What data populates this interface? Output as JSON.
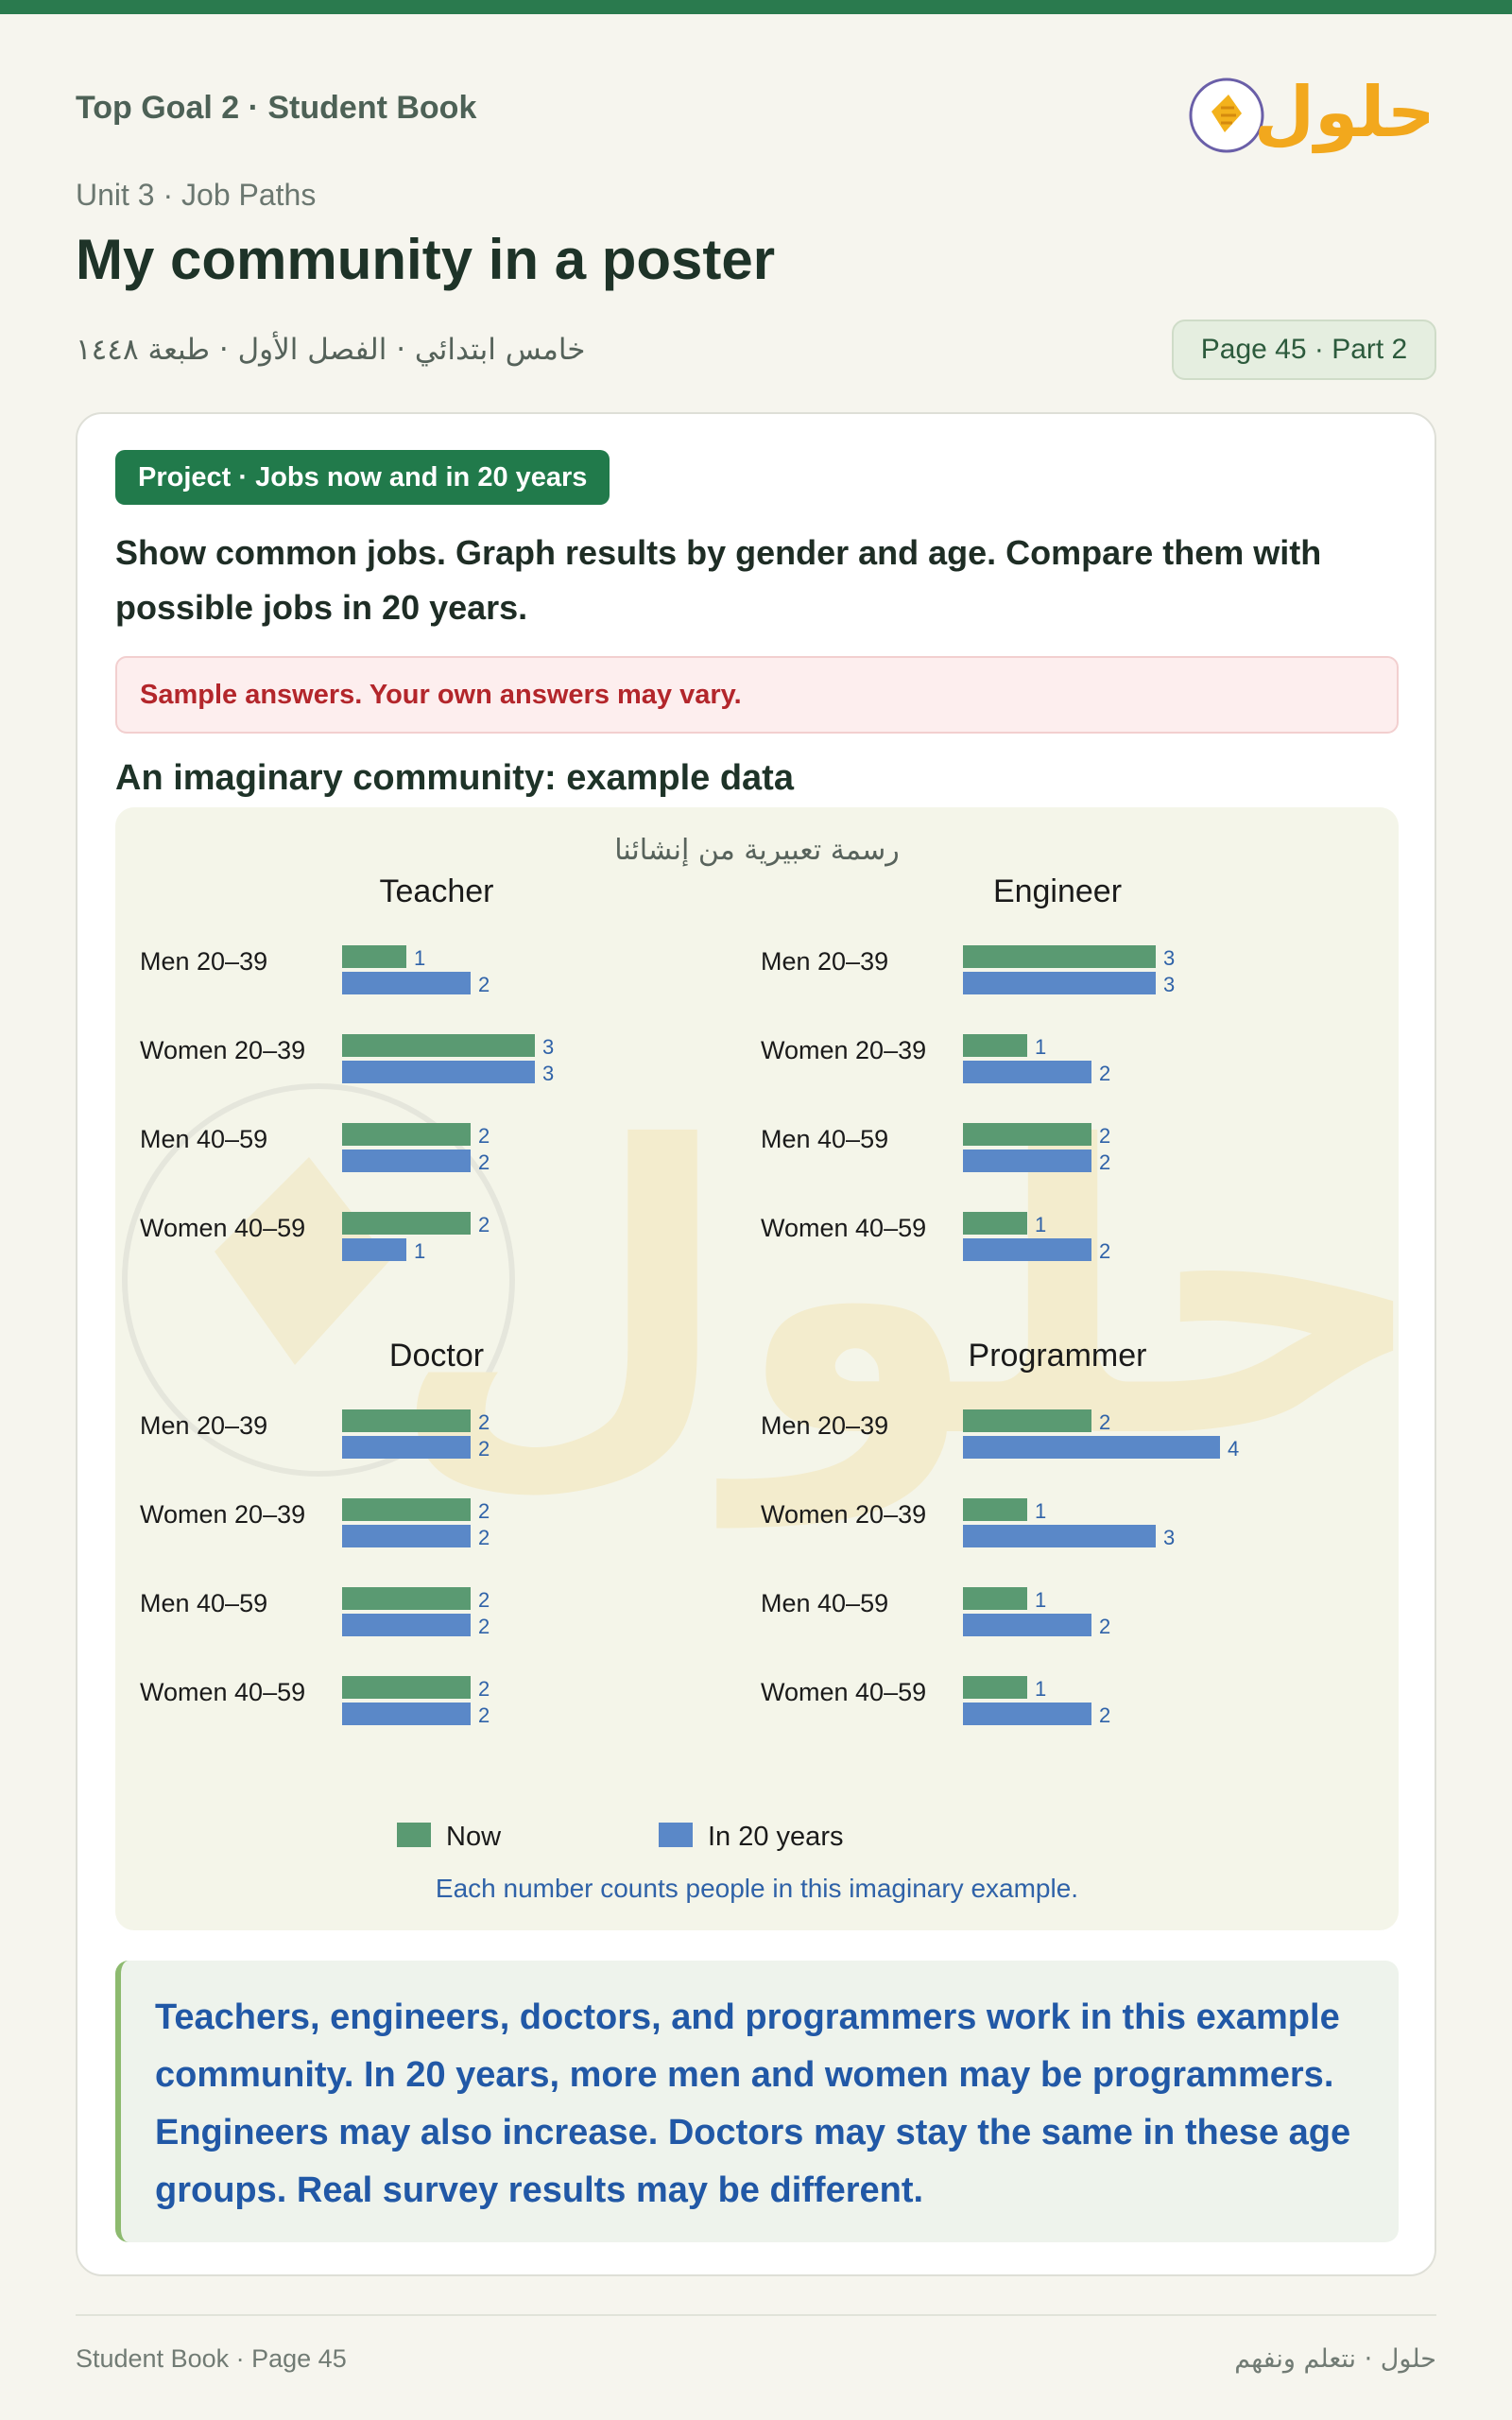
{
  "header": {
    "book_title": "Top Goal 2 · Student Book",
    "unit": "Unit 3 · Job Paths",
    "title": "My community in a poster",
    "grade_line": "خامس ابتدائي · الفصل الأول · طبعة ١٤٤٨",
    "page_pill": "Page 45 · Part 2",
    "logo_text": "حلول"
  },
  "card": {
    "badge": "Project · Jobs now and in 20 years",
    "instructions": "Show common jobs. Graph results by gender and age. Compare them with possible jobs in 20 years.",
    "notice": "Sample answers. Your own answers may vary.",
    "section_heading": "An imaginary community: example data",
    "chart_caption": "رسمة تعبيرية من إنشائنا",
    "footnote": "Each number counts people in this imaginary example.",
    "conclusion": "Teachers, engineers, doctors, and programmers work in this example community. In 20 years, more men and women may be programmers. Engineers may also increase. Doctors may stay the same in these age groups. Real survey results may be different."
  },
  "chart_data": [
    {
      "type": "bar",
      "orientation": "horizontal",
      "title": "Teacher",
      "categories": [
        "Men 20–39",
        "Women 20–39",
        "Men 40–59",
        "Women 40–59"
      ],
      "series": [
        {
          "name": "Now",
          "values": [
            1,
            3,
            2,
            2
          ]
        },
        {
          "name": "In 20 years",
          "values": [
            2,
            3,
            2,
            1
          ]
        }
      ]
    },
    {
      "type": "bar",
      "orientation": "horizontal",
      "title": "Engineer",
      "categories": [
        "Men 20–39",
        "Women 20–39",
        "Men 40–59",
        "Women 40–59"
      ],
      "series": [
        {
          "name": "Now",
          "values": [
            3,
            1,
            2,
            1
          ]
        },
        {
          "name": "In 20 years",
          "values": [
            3,
            2,
            2,
            2
          ]
        }
      ]
    },
    {
      "type": "bar",
      "orientation": "horizontal",
      "title": "Doctor",
      "categories": [
        "Men 20–39",
        "Women 20–39",
        "Men 40–59",
        "Women 40–59"
      ],
      "series": [
        {
          "name": "Now",
          "values": [
            2,
            2,
            2,
            2
          ]
        },
        {
          "name": "In 20 years",
          "values": [
            2,
            2,
            2,
            2
          ]
        }
      ]
    },
    {
      "type": "bar",
      "orientation": "horizontal",
      "title": "Programmer",
      "categories": [
        "Men 20–39",
        "Women 20–39",
        "Men 40–59",
        "Women 40–59"
      ],
      "series": [
        {
          "name": "Now",
          "values": [
            2,
            1,
            1,
            1
          ]
        },
        {
          "name": "In 20 years",
          "values": [
            4,
            3,
            2,
            2
          ]
        }
      ]
    }
  ],
  "legend": {
    "placement": "bottom",
    "items": [
      {
        "label": "Now",
        "color": "#5a9a72"
      },
      {
        "label": "In 20 years",
        "color": "#5a88c8"
      }
    ]
  },
  "colors": {
    "accent": "#217a4b",
    "now": "#5a9a72",
    "future": "#5a88c8",
    "value_label": "#2f62a8"
  },
  "footer": {
    "left": "Student Book · Page 45",
    "right": "حلول · نتعلم ونفهم"
  }
}
